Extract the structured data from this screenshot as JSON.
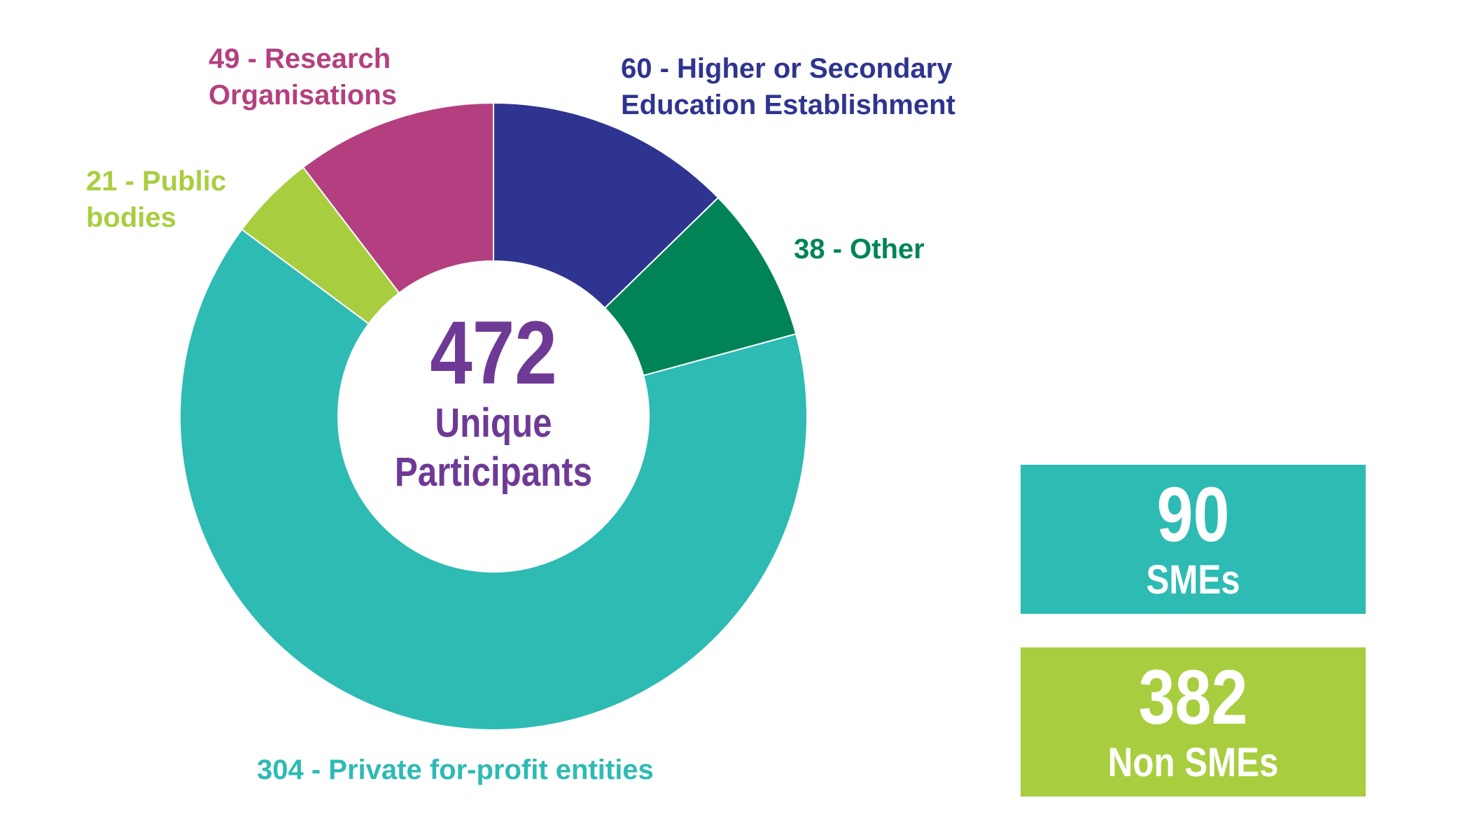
{
  "chart_data": {
    "type": "pie",
    "variant": "donut",
    "start": "top",
    "direction": "clockwise",
    "slices": [
      {
        "label": "60 - Higher or Secondary\nEducation Establishment",
        "name": "Higher or Secondary Education Establishment",
        "value": 60,
        "color": "#2e348f"
      },
      {
        "label": "38 - Other",
        "name": "Other",
        "value": 38,
        "color": "#008457"
      },
      {
        "label": "304 - Private for-profit entities",
        "name": "Private for-profit entities",
        "value": 304,
        "color": "#2dbbb4"
      },
      {
        "label": "21 - Public\nbodies",
        "name": "Public bodies",
        "value": 21,
        "color": "#a8ce3f"
      },
      {
        "label": "49 - Research\nOrganisations",
        "name": "Research Organisations",
        "value": 49,
        "color": "#b43f80"
      }
    ],
    "center": {
      "value": "472",
      "text": "Unique\nParticipants",
      "color": "#6e3a96"
    }
  },
  "summary_boxes": [
    {
      "value": "90",
      "label": "SMEs",
      "color": "#2dbbb4"
    },
    {
      "value": "382",
      "label": "Non SMEs",
      "color": "#a8ce3f"
    }
  ]
}
